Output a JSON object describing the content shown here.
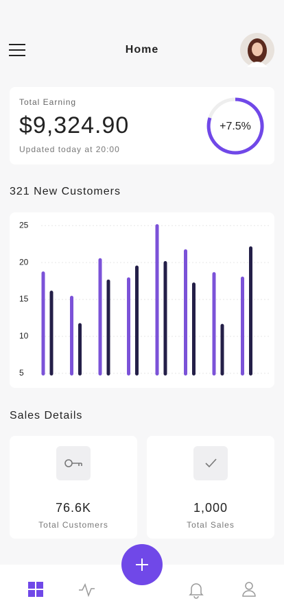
{
  "header": {
    "title": "Home"
  },
  "earning": {
    "label": "Total Earning",
    "amount": "$9,324.90",
    "updated": "Updated today at 20:00",
    "change": "+7.5%"
  },
  "chart_data": {
    "type": "bar",
    "title": "321 New Customers",
    "series": [
      {
        "color": "#7b52d8",
        "values": [
          18.8,
          15.5,
          20.6,
          18,
          25.2,
          21.8,
          18.7,
          18.1
        ]
      },
      {
        "color": "#241f48",
        "values": [
          16.2,
          11.8,
          17.7,
          19.6,
          20.2,
          17.3,
          11.7,
          22.2
        ]
      }
    ],
    "ylim": [
      4.7,
      25.4
    ],
    "yticks": [
      5,
      10,
      15,
      20,
      25
    ],
    "grid": true
  },
  "sales": {
    "title": "Sales Details",
    "cards": [
      {
        "value": "76.6K",
        "label": "Total Customers"
      },
      {
        "value": "1,000",
        "label": "Total Sales"
      }
    ]
  }
}
